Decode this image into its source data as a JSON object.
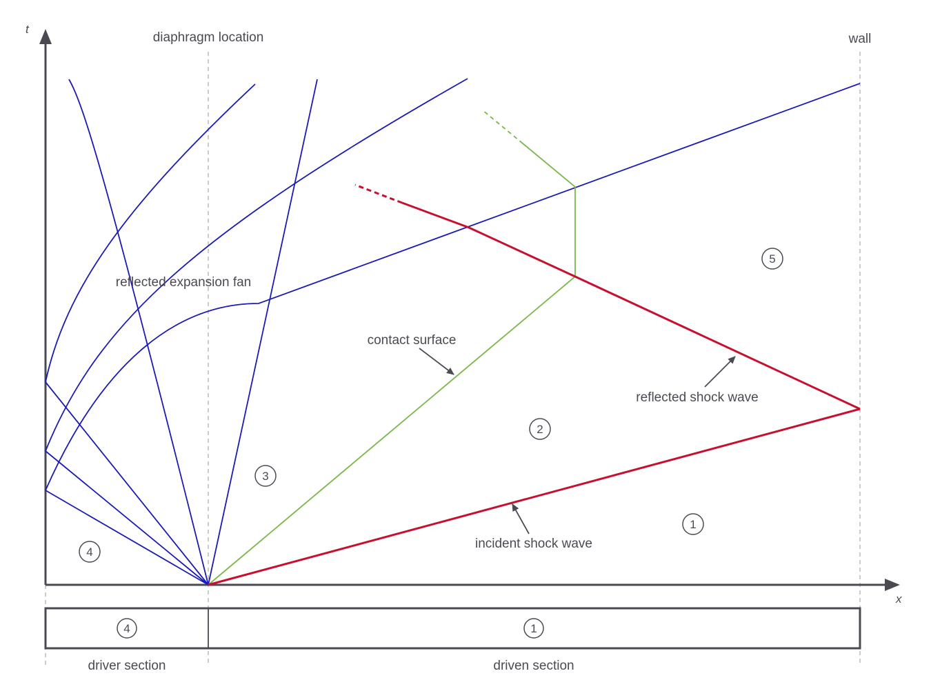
{
  "axes": {
    "x_label": "x",
    "y_label": "t"
  },
  "labels": {
    "diaphragm": "diaphragm location",
    "wall": "wall",
    "reflected_fan": "reflected expansion fan",
    "contact_surface": "contact surface",
    "reflected_shock": "reflected shock wave",
    "incident_shock": "incident shock wave",
    "driver_section": "driver section",
    "driven_section": "driven section"
  },
  "regions": {
    "r1": "1",
    "r2": "2",
    "r3": "3",
    "r4": "4",
    "r5": "5",
    "tube_driver": "4",
    "tube_driven": "1"
  },
  "colors": {
    "axis": "#4a4a52",
    "expansion": "#1a1ab8",
    "contact": "#7ab648",
    "shock": "#c8102e",
    "guide": "#b0b0b0"
  }
}
